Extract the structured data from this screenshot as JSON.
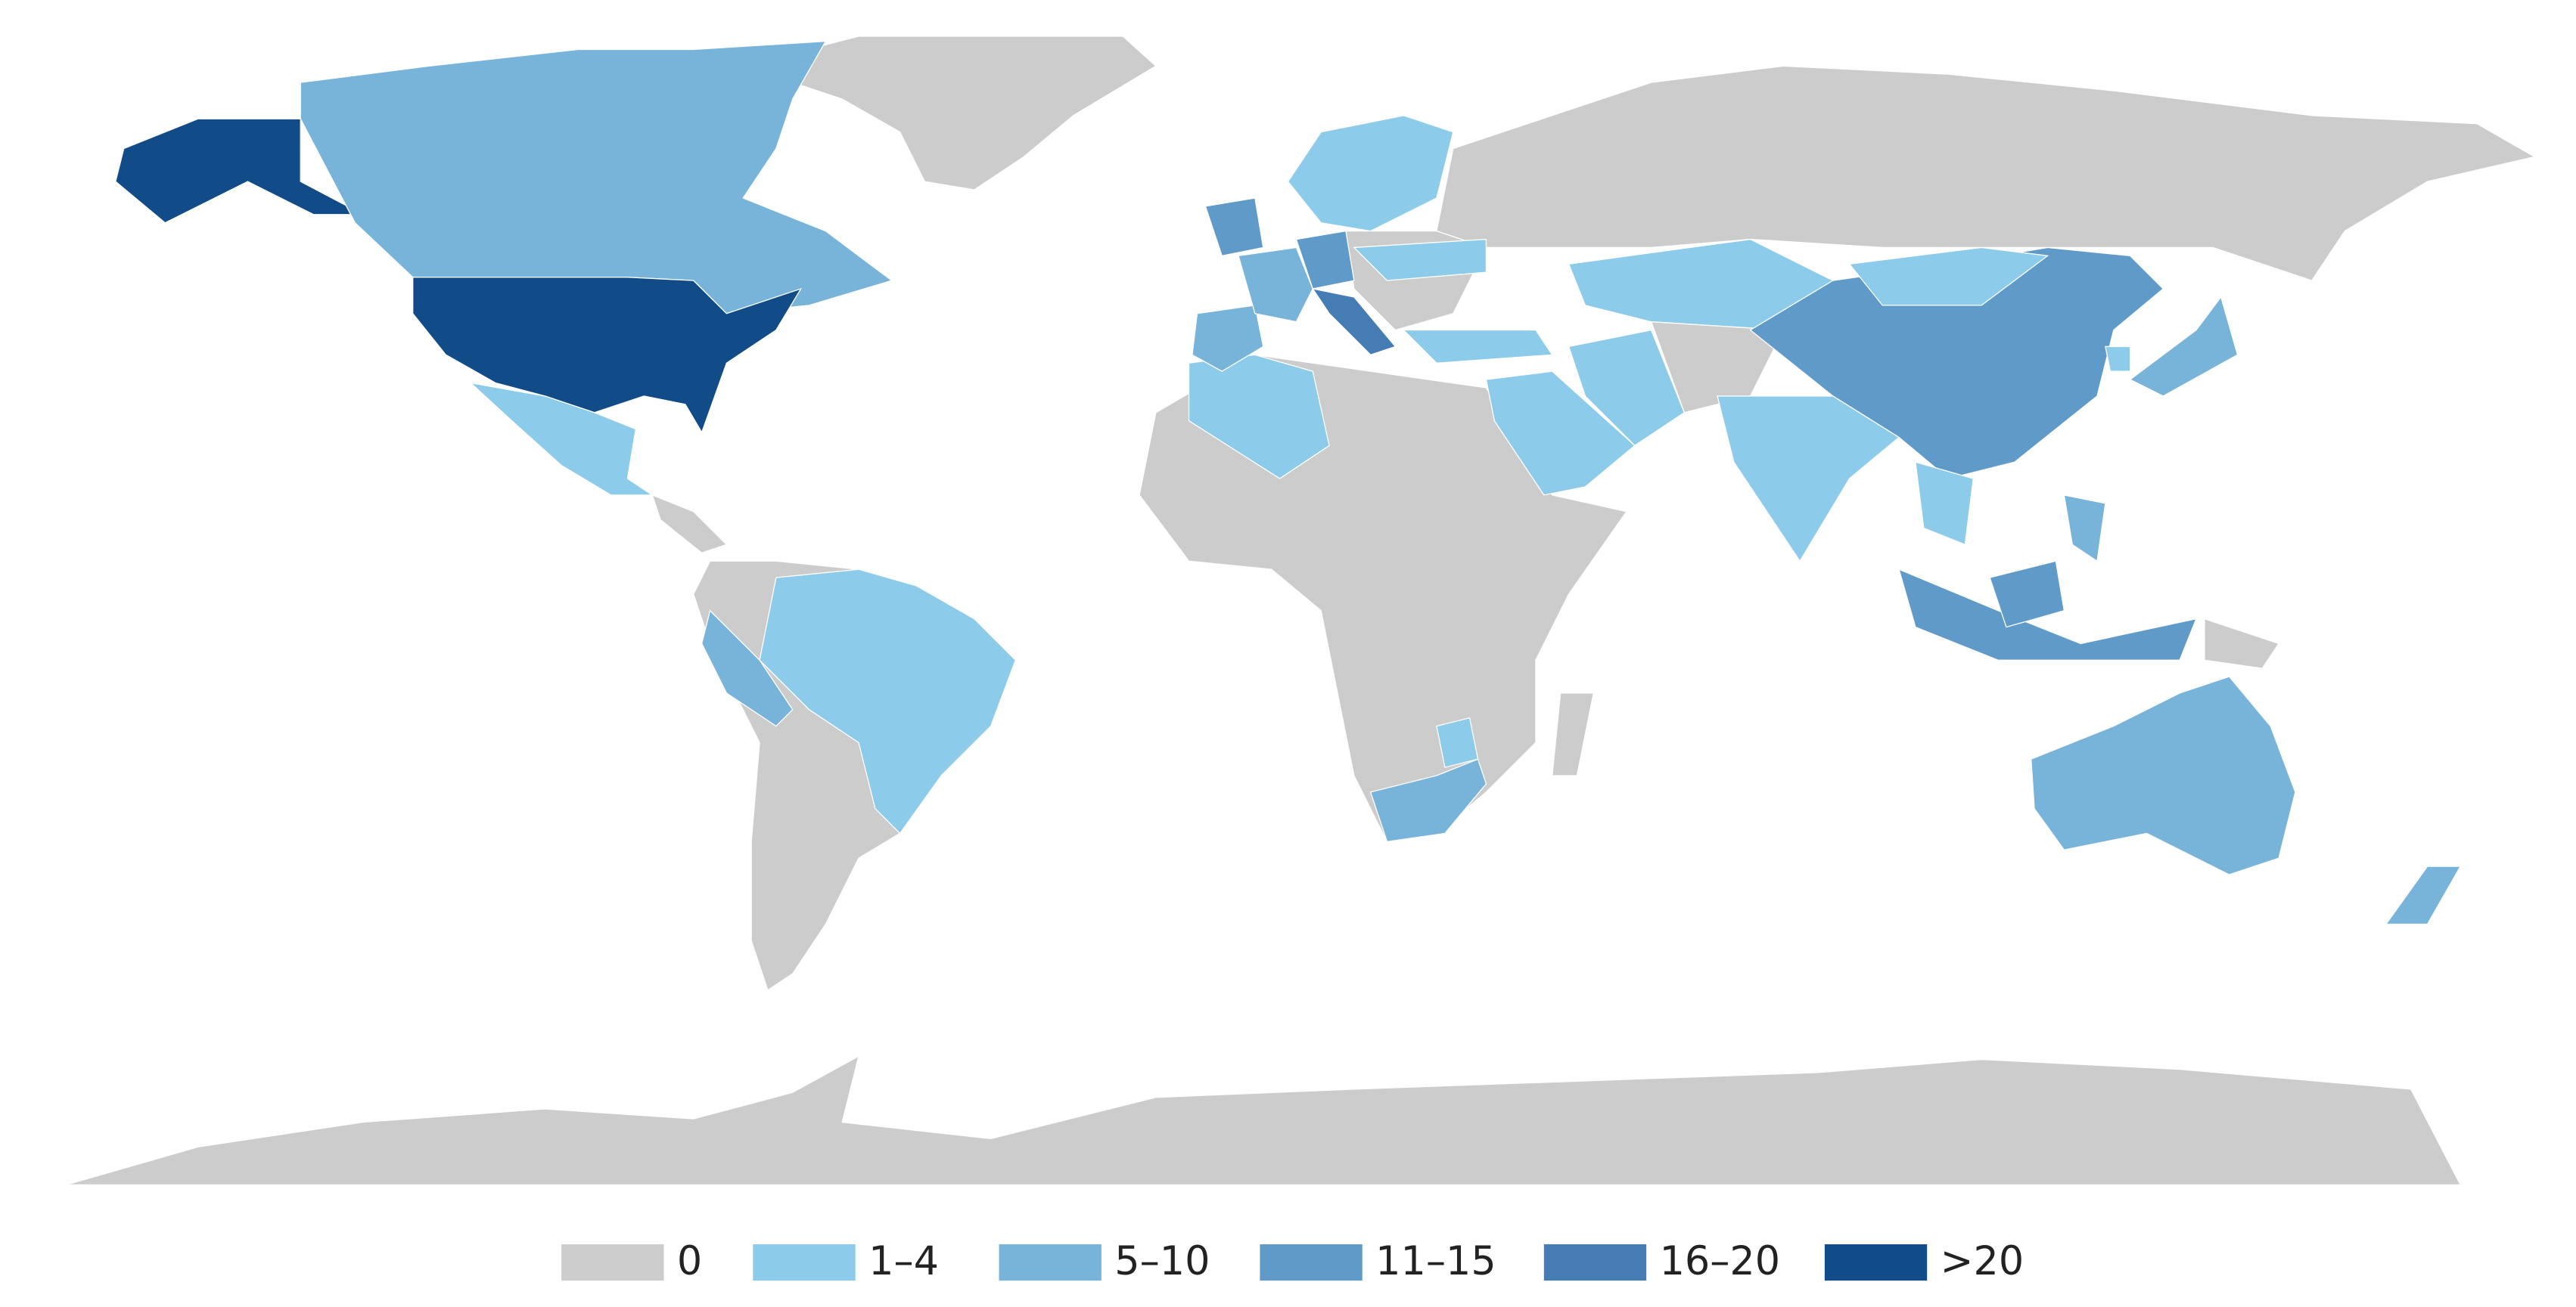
{
  "legend": {
    "items": [
      {
        "label": "0",
        "color": "#cccccc"
      },
      {
        "label": "1–4",
        "color": "#8ccbe9"
      },
      {
        "label": "5–10",
        "color": "#78b3d9"
      },
      {
        "label": "11–15",
        "color": "#5f9ac9"
      },
      {
        "label": "16–20",
        "color": "#457cb3"
      },
      {
        "label": ">20",
        "color": "#124c88"
      }
    ]
  }
}
